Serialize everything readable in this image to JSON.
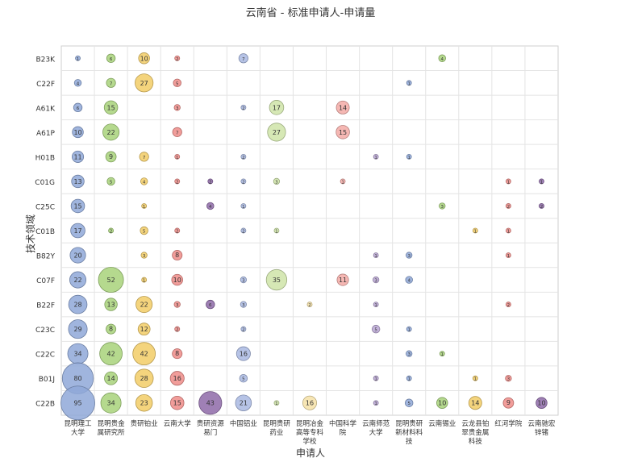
{
  "chart_data": {
    "type": "bubble",
    "title": "云南省 - 标准申请人-申请量",
    "xlabel": "申请人",
    "ylabel": "技术领域",
    "x_categories": [
      [
        "昆明理工",
        "大学"
      ],
      [
        "昆明贵金",
        "属研究所"
      ],
      [
        "贵研铂业"
      ],
      [
        "云南大学"
      ],
      [
        "贵研资源",
        "易门"
      ],
      [
        "中国铝业"
      ],
      [
        "昆明贵研",
        "药业"
      ],
      [
        "昆明冶金",
        "高等专科",
        "学校"
      ],
      [
        "中国科学",
        "院"
      ],
      [
        "云南师范",
        "大学"
      ],
      [
        "昆明贵研",
        "新材料科",
        "技"
      ],
      [
        "云南锡业"
      ],
      [
        "云龙县铂",
        "翠贵金属",
        "科技"
      ],
      [
        "红河学院"
      ],
      [
        "云南驰宏",
        "锌锗"
      ]
    ],
    "y_categories": [
      "B23K",
      "C22F",
      "A61K",
      "A61P",
      "H01B",
      "C01G",
      "C25C",
      "C01B",
      "B82Y",
      "C07F",
      "B22F",
      "C23C",
      "C22C",
      "B01J",
      "C22B"
    ],
    "series_colors": [
      "#8fa8d8",
      "#a8d27a",
      "#f2cc66",
      "#ee8c88",
      "#8e6aa8",
      "#a9b9e2",
      "#cfe4a8",
      "#f6e2a8",
      "#f3aaa6",
      "#b9a6d3",
      "#8fa8d8",
      "#a8d27a",
      "#f2cc66",
      "#ee8c88",
      "#8e6aa8"
    ],
    "points": [
      {
        "x": 0,
        "y": "B23K",
        "v": 1
      },
      {
        "x": 1,
        "y": "B23K",
        "v": 6
      },
      {
        "x": 2,
        "y": "B23K",
        "v": 10
      },
      {
        "x": 3,
        "y": "B23K",
        "v": 2
      },
      {
        "x": 5,
        "y": "B23K",
        "v": 7
      },
      {
        "x": 11,
        "y": "B23K",
        "v": 4
      },
      {
        "x": 0,
        "y": "C22F",
        "v": 4
      },
      {
        "x": 1,
        "y": "C22F",
        "v": 7
      },
      {
        "x": 2,
        "y": "C22F",
        "v": 27
      },
      {
        "x": 3,
        "y": "C22F",
        "v": 5
      },
      {
        "x": 10,
        "y": "C22F",
        "v": 1
      },
      {
        "x": 0,
        "y": "A61K",
        "v": 6
      },
      {
        "x": 1,
        "y": "A61K",
        "v": 15
      },
      {
        "x": 3,
        "y": "A61K",
        "v": 3
      },
      {
        "x": 5,
        "y": "A61K",
        "v": 2
      },
      {
        "x": 6,
        "y": "A61K",
        "v": 17
      },
      {
        "x": 8,
        "y": "A61K",
        "v": 14
      },
      {
        "x": 0,
        "y": "A61P",
        "v": 10
      },
      {
        "x": 1,
        "y": "A61P",
        "v": 22
      },
      {
        "x": 3,
        "y": "A61P",
        "v": 7
      },
      {
        "x": 6,
        "y": "A61P",
        "v": 27
      },
      {
        "x": 8,
        "y": "A61P",
        "v": 15
      },
      {
        "x": 0,
        "y": "H01B",
        "v": 11
      },
      {
        "x": 1,
        "y": "H01B",
        "v": 9
      },
      {
        "x": 2,
        "y": "H01B",
        "v": 7
      },
      {
        "x": 3,
        "y": "H01B",
        "v": 1
      },
      {
        "x": 5,
        "y": "H01B",
        "v": 2
      },
      {
        "x": 9,
        "y": "H01B",
        "v": 1
      },
      {
        "x": 10,
        "y": "H01B",
        "v": 1
      },
      {
        "x": 0,
        "y": "C01G",
        "v": 13
      },
      {
        "x": 1,
        "y": "C01G",
        "v": 5
      },
      {
        "x": 2,
        "y": "C01G",
        "v": 4
      },
      {
        "x": 3,
        "y": "C01G",
        "v": 2
      },
      {
        "x": 4,
        "y": "C01G",
        "v": 2
      },
      {
        "x": 5,
        "y": "C01G",
        "v": 2
      },
      {
        "x": 6,
        "y": "C01G",
        "v": 3
      },
      {
        "x": 8,
        "y": "C01G",
        "v": 1
      },
      {
        "x": 13,
        "y": "C01G",
        "v": 1
      },
      {
        "x": 14,
        "y": "C01G",
        "v": 1
      },
      {
        "x": 0,
        "y": "C25C",
        "v": 15
      },
      {
        "x": 2,
        "y": "C25C",
        "v": 1
      },
      {
        "x": 4,
        "y": "C25C",
        "v": 4
      },
      {
        "x": 5,
        "y": "C25C",
        "v": 1
      },
      {
        "x": 11,
        "y": "C25C",
        "v": 3
      },
      {
        "x": 13,
        "y": "C25C",
        "v": 2
      },
      {
        "x": 14,
        "y": "C25C",
        "v": 2
      },
      {
        "x": 0,
        "y": "C01B",
        "v": 17
      },
      {
        "x": 1,
        "y": "C01B",
        "v": 2
      },
      {
        "x": 2,
        "y": "C01B",
        "v": 5
      },
      {
        "x": 3,
        "y": "C01B",
        "v": 2
      },
      {
        "x": 5,
        "y": "C01B",
        "v": 2
      },
      {
        "x": 6,
        "y": "C01B",
        "v": 1
      },
      {
        "x": 12,
        "y": "C01B",
        "v": 1
      },
      {
        "x": 13,
        "y": "C01B",
        "v": 1
      },
      {
        "x": 0,
        "y": "B82Y",
        "v": 20
      },
      {
        "x": 2,
        "y": "B82Y",
        "v": 3
      },
      {
        "x": 3,
        "y": "B82Y",
        "v": 8
      },
      {
        "x": 9,
        "y": "B82Y",
        "v": 1
      },
      {
        "x": 10,
        "y": "B82Y",
        "v": 3
      },
      {
        "x": 13,
        "y": "B82Y",
        "v": 1
      },
      {
        "x": 0,
        "y": "C07F",
        "v": 22
      },
      {
        "x": 1,
        "y": "C07F",
        "v": 52
      },
      {
        "x": 2,
        "y": "C07F",
        "v": 1
      },
      {
        "x": 3,
        "y": "C07F",
        "v": 10
      },
      {
        "x": 5,
        "y": "C07F",
        "v": 3
      },
      {
        "x": 6,
        "y": "C07F",
        "v": 35
      },
      {
        "x": 8,
        "y": "C07F",
        "v": 11
      },
      {
        "x": 9,
        "y": "C07F",
        "v": 3
      },
      {
        "x": 10,
        "y": "C07F",
        "v": 4
      },
      {
        "x": 0,
        "y": "B22F",
        "v": 28
      },
      {
        "x": 1,
        "y": "B22F",
        "v": 13
      },
      {
        "x": 2,
        "y": "B22F",
        "v": 22
      },
      {
        "x": 3,
        "y": "B22F",
        "v": 3
      },
      {
        "x": 4,
        "y": "B22F",
        "v": 6
      },
      {
        "x": 5,
        "y": "B22F",
        "v": 3
      },
      {
        "x": 7,
        "y": "B22F",
        "v": 2
      },
      {
        "x": 9,
        "y": "B22F",
        "v": 1
      },
      {
        "x": 13,
        "y": "B22F",
        "v": 2
      },
      {
        "x": 0,
        "y": "C23C",
        "v": 29
      },
      {
        "x": 1,
        "y": "C23C",
        "v": 8
      },
      {
        "x": 2,
        "y": "C23C",
        "v": 12
      },
      {
        "x": 3,
        "y": "C23C",
        "v": 2
      },
      {
        "x": 5,
        "y": "C23C",
        "v": 2
      },
      {
        "x": 9,
        "y": "C23C",
        "v": 5
      },
      {
        "x": 10,
        "y": "C23C",
        "v": 1
      },
      {
        "x": 0,
        "y": "C22C",
        "v": 34
      },
      {
        "x": 1,
        "y": "C22C",
        "v": 42
      },
      {
        "x": 2,
        "y": "C22C",
        "v": 42
      },
      {
        "x": 3,
        "y": "C22C",
        "v": 8
      },
      {
        "x": 5,
        "y": "C22C",
        "v": 16
      },
      {
        "x": 10,
        "y": "C22C",
        "v": 3
      },
      {
        "x": 11,
        "y": "C22C",
        "v": 1
      },
      {
        "x": 0,
        "y": "B01J",
        "v": 80
      },
      {
        "x": 1,
        "y": "B01J",
        "v": 14
      },
      {
        "x": 2,
        "y": "B01J",
        "v": 28
      },
      {
        "x": 3,
        "y": "B01J",
        "v": 16
      },
      {
        "x": 5,
        "y": "B01J",
        "v": 5
      },
      {
        "x": 9,
        "y": "B01J",
        "v": 1
      },
      {
        "x": 10,
        "y": "B01J",
        "v": 1
      },
      {
        "x": 12,
        "y": "B01J",
        "v": 1
      },
      {
        "x": 13,
        "y": "B01J",
        "v": 3
      },
      {
        "x": 0,
        "y": "C22B",
        "v": 95
      },
      {
        "x": 1,
        "y": "C22B",
        "v": 34
      },
      {
        "x": 2,
        "y": "C22B",
        "v": 23
      },
      {
        "x": 3,
        "y": "C22B",
        "v": 15
      },
      {
        "x": 4,
        "y": "C22B",
        "v": 43
      },
      {
        "x": 5,
        "y": "C22B",
        "v": 21
      },
      {
        "x": 6,
        "y": "C22B",
        "v": 1
      },
      {
        "x": 7,
        "y": "C22B",
        "v": 16
      },
      {
        "x": 9,
        "y": "C22B",
        "v": 1
      },
      {
        "x": 10,
        "y": "C22B",
        "v": 5
      },
      {
        "x": 11,
        "y": "C22B",
        "v": 10
      },
      {
        "x": 12,
        "y": "C22B",
        "v": 14
      },
      {
        "x": 13,
        "y": "C22B",
        "v": 9
      },
      {
        "x": 14,
        "y": "C22B",
        "v": 10
      }
    ]
  }
}
